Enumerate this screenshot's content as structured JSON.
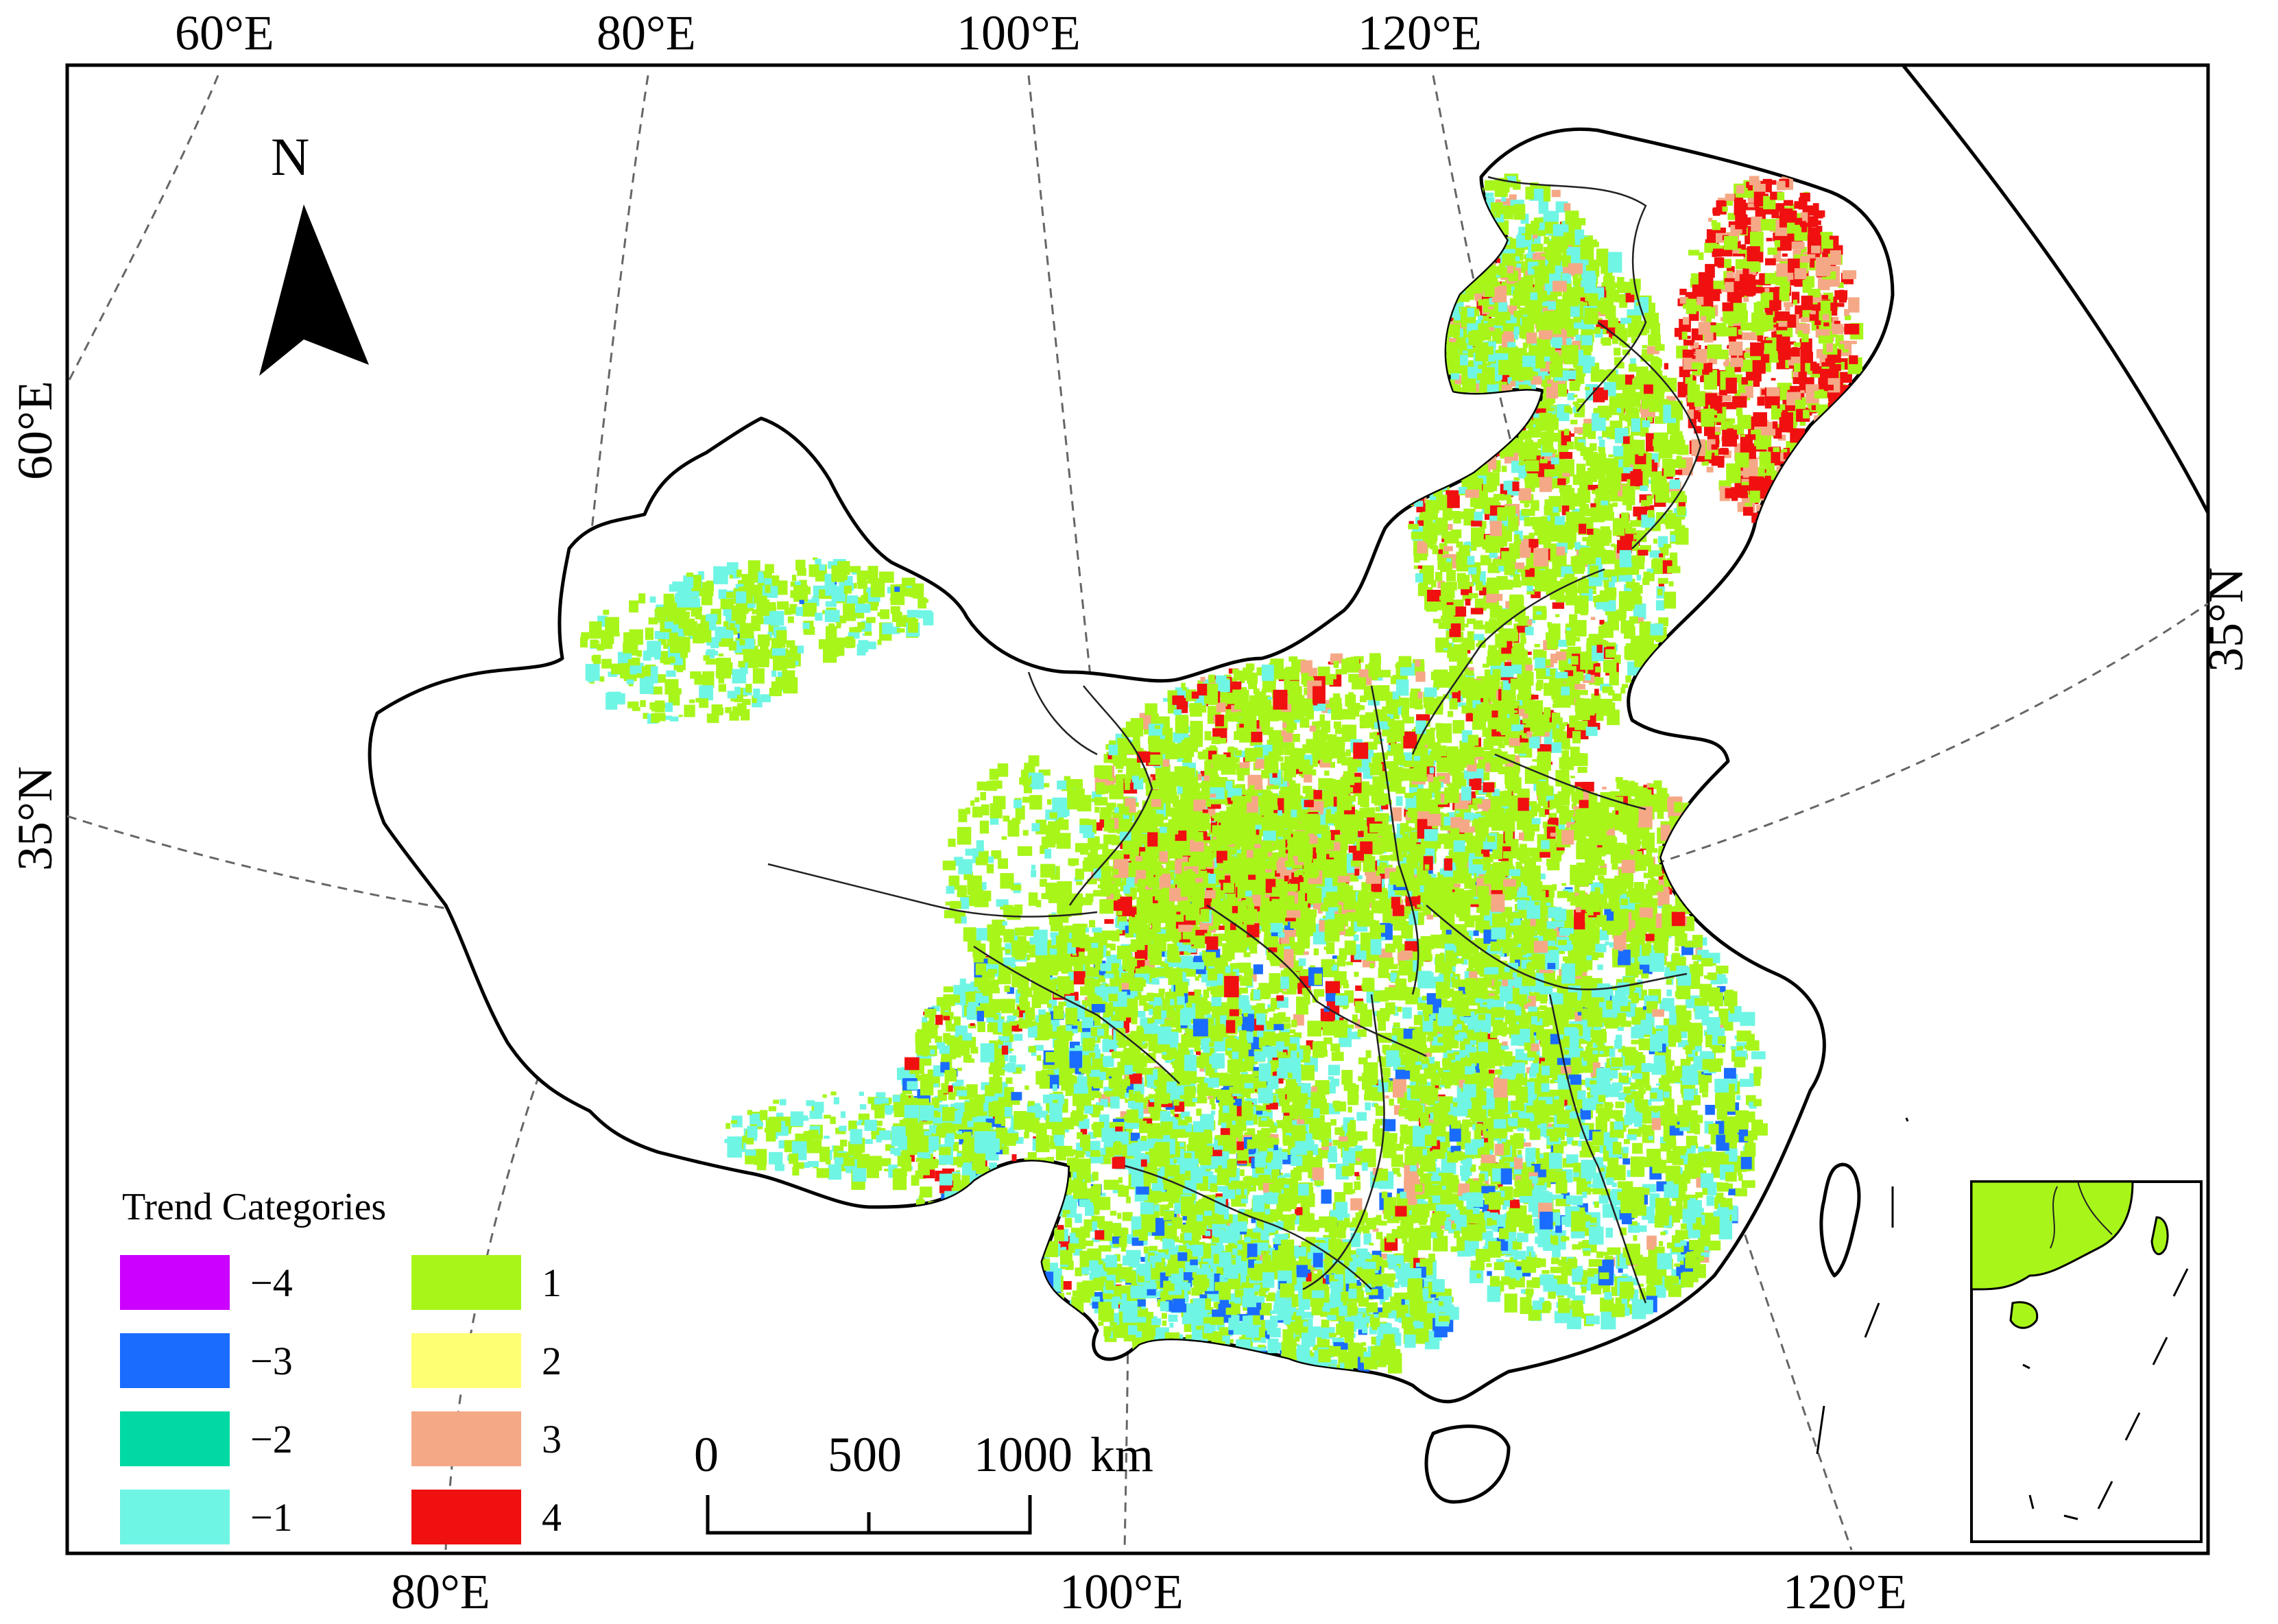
{
  "graticule_labels": {
    "top": [
      "60°E",
      "80°E",
      "100°E",
      "120°E"
    ],
    "bottom": [
      "80°E",
      "100°E",
      "120°E"
    ],
    "left": [
      "60°E",
      "35°N"
    ],
    "right": [
      "35°N"
    ]
  },
  "north_arrow": {
    "label": "N"
  },
  "legend": {
    "title": "Trend Categories",
    "items": [
      {
        "label": "−4",
        "color": "#cc00ff"
      },
      {
        "label": "−3",
        "color": "#1a6cff"
      },
      {
        "label": "−2",
        "color": "#00d9a3"
      },
      {
        "label": "−1",
        "color": "#6ff5e4"
      },
      {
        "label": "1",
        "color": "#a8f51a"
      },
      {
        "label": "2",
        "color": "#ffff73"
      },
      {
        "label": "3",
        "color": "#f5a886"
      },
      {
        "label": "4",
        "color": "#f01010"
      }
    ]
  },
  "scale_bar": {
    "ticks": [
      "0",
      "500",
      "1000"
    ],
    "unit": "km"
  }
}
